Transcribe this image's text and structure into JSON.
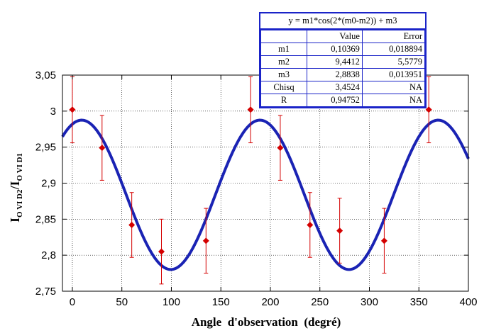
{
  "chart_data": {
    "type": "scatter",
    "xlabel": "Angle  d'observation  (degré)",
    "ylabel_main": "I",
    "ylabel_sub1": "O VI D2",
    "ylabel_sep": "/I",
    "ylabel_sub2": "O VI D1",
    "xlim": [
      -10,
      400
    ],
    "ylim": [
      2.75,
      3.05
    ],
    "x_ticks": [
      0,
      50,
      100,
      150,
      200,
      250,
      300,
      350,
      400
    ],
    "x_tick_labels": [
      "0",
      "50",
      "100",
      "150",
      "200",
      "250",
      "300",
      "350",
      "400"
    ],
    "y_ticks": [
      2.75,
      2.8,
      2.85,
      2.9,
      2.95,
      3.0,
      3.05
    ],
    "y_tick_labels": [
      "2,75",
      "2,8",
      "2,85",
      "2,9",
      "2,95",
      "3",
      "3,05"
    ],
    "grid": true,
    "points": [
      {
        "x": 0,
        "y": 3.002,
        "err": 0.046
      },
      {
        "x": 30,
        "y": 2.949,
        "err": 0.045
      },
      {
        "x": 60,
        "y": 2.842,
        "err": 0.045
      },
      {
        "x": 90,
        "y": 2.805,
        "err": 0.045
      },
      {
        "x": 135,
        "y": 2.82,
        "err": 0.045
      },
      {
        "x": 180,
        "y": 3.002,
        "err": 0.046
      },
      {
        "x": 210,
        "y": 2.949,
        "err": 0.045
      },
      {
        "x": 240,
        "y": 2.842,
        "err": 0.045
      },
      {
        "x": 270,
        "y": 2.834,
        "err": 0.045
      },
      {
        "x": 315,
        "y": 2.82,
        "err": 0.045
      },
      {
        "x": 360,
        "y": 3.002,
        "err": 0.046
      }
    ],
    "fit": {
      "equation": "y = m1*cos(2*(m0-m2)) + m3",
      "header_value": "Value",
      "header_error": "Error",
      "params": [
        {
          "name": "m1",
          "value": "0,10369",
          "error": "0,018894"
        },
        {
          "name": "m2",
          "value": "9,4412",
          "error": "5,5779"
        },
        {
          "name": "m3",
          "value": "2,8838",
          "error": "0,013951"
        },
        {
          "name": "Chisq",
          "value": "3,4524",
          "error": "NA"
        },
        {
          "name": "R",
          "value": "0,94752",
          "error": "NA"
        }
      ],
      "m1": 0.10369,
      "m2": 9.4412,
      "m3": 2.8838
    },
    "colors": {
      "points": "#d40000",
      "fit": "#1a23b4",
      "grid": "#000000"
    }
  }
}
